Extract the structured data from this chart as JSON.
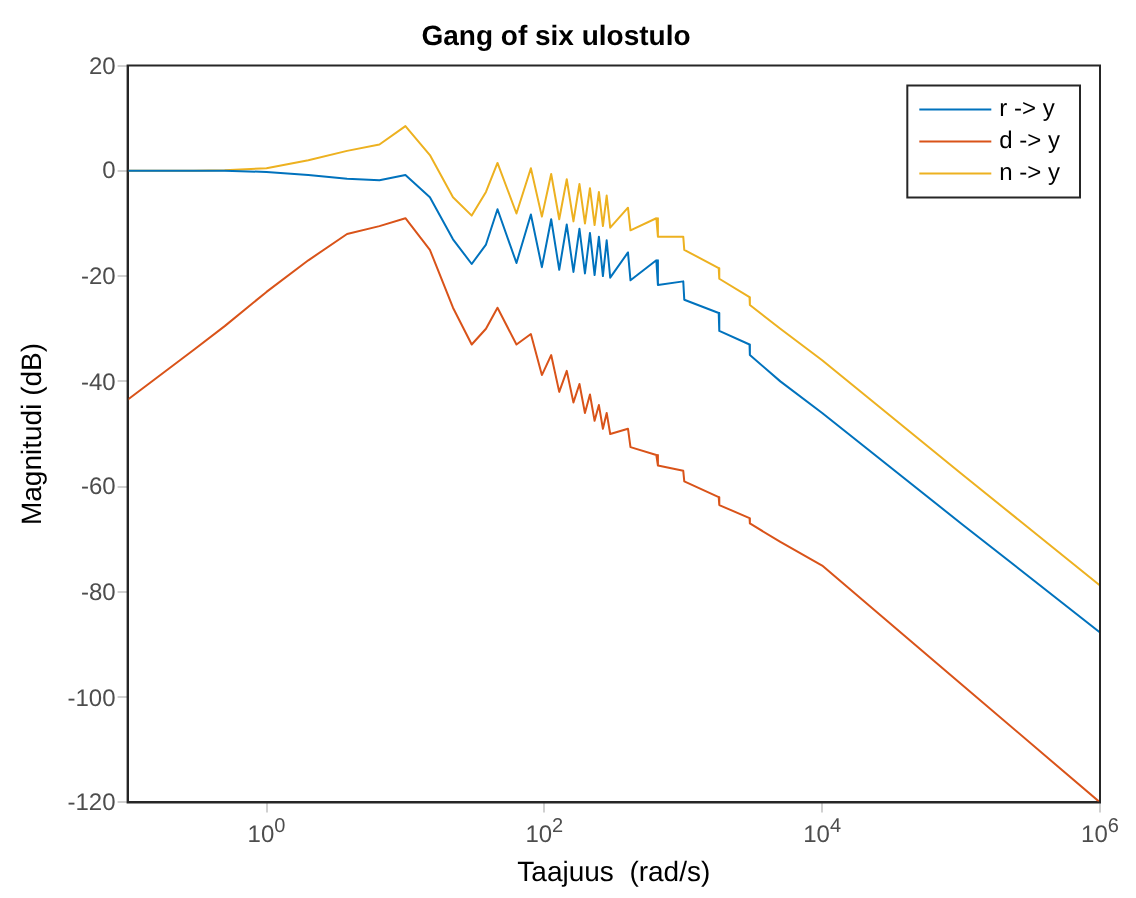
{
  "chart_data": {
    "type": "line",
    "title": "Gang of six ulostulo",
    "xlabel": "Taajuus  (rad/s)",
    "ylabel": "Magnitudi (dB)",
    "log": "x",
    "grid": false,
    "legend": "top right",
    "marker": "none",
    "line_style": "solid",
    "x": [
      0.1,
      0.3,
      0.5,
      1,
      2,
      3.8,
      6.5,
      10,
      15,
      22,
      30,
      38,
      46,
      63,
      80,
      96,
      112,
      128,
      145,
      162,
      179,
      196,
      213,
      230,
      247,
      264,
      281,
      298,
      400,
      417,
      640,
      657,
      1000,
      1017,
      1800,
      1817,
      3000,
      3017,
      5000,
      10000,
      100000,
      1000000
    ],
    "xlim": [
      0.1,
      1000000
    ],
    "xticks": [
      {
        "value": 1,
        "label": "10$^{0}$"
      },
      {
        "value": 100,
        "label": "10$^{2}$"
      },
      {
        "value": 10000,
        "label": "10$^{4}$"
      },
      {
        "value": 1000000,
        "label": "10$^{6}$"
      }
    ],
    "ylim": [
      -120,
      20
    ],
    "yticks": [
      -120,
      -100,
      -80,
      -60,
      -40,
      -20,
      0,
      20
    ],
    "series": [
      {
        "name": "r -> y",
        "color": "#0072bd",
        "values": [
          0,
          0,
          0,
          -0.2,
          -0.8,
          -1.5,
          -1.8,
          -0.8,
          -5,
          -13,
          -17.7,
          -14,
          -7.3,
          -17.5,
          -8.3,
          -18.3,
          -9.2,
          -18.8,
          -10.2,
          -19.2,
          -11,
          -19.5,
          -11.8,
          -19.8,
          -12.5,
          -20,
          -13.2,
          -20.3,
          -15.5,
          -20.8,
          -17,
          -21.7,
          -21,
          -24.5,
          -27,
          -30.4,
          -33,
          -35,
          -40,
          -46,
          -67,
          -87.7
        ]
      },
      {
        "name": "d -> y",
        "color": "#d95319",
        "values": [
          -43.5,
          -34,
          -29.5,
          -23,
          -17,
          -12,
          -10.5,
          -9,
          -15,
          -26,
          -33,
          -30,
          -26,
          -33,
          -31,
          -38.8,
          -35,
          -42,
          -38,
          -44,
          -40.5,
          -46,
          -42.5,
          -47.5,
          -44.5,
          -49,
          -46,
          -50,
          -49,
          -52.5,
          -54,
          -56,
          -57,
          -59,
          -62,
          -63.5,
          -66,
          -67,
          -70.5,
          -75,
          -97.5,
          -120
        ]
      },
      {
        "name": "n -> y",
        "color": "#edb120",
        "values": [
          0,
          0,
          0.1,
          0.5,
          2,
          3.8,
          5,
          8.5,
          3,
          -5,
          -8.5,
          -4,
          1.5,
          -8.1,
          0.5,
          -8.7,
          -0.6,
          -9.2,
          -1.6,
          -9.6,
          -2.5,
          -10,
          -3.3,
          -10.3,
          -4,
          -10.5,
          -4.7,
          -10.8,
          -7,
          -11.3,
          -9,
          -12.5,
          -12.5,
          -15,
          -18.5,
          -20.5,
          -24,
          -25.5,
          -30,
          -36,
          -57.5,
          -78.8
        ]
      }
    ]
  }
}
